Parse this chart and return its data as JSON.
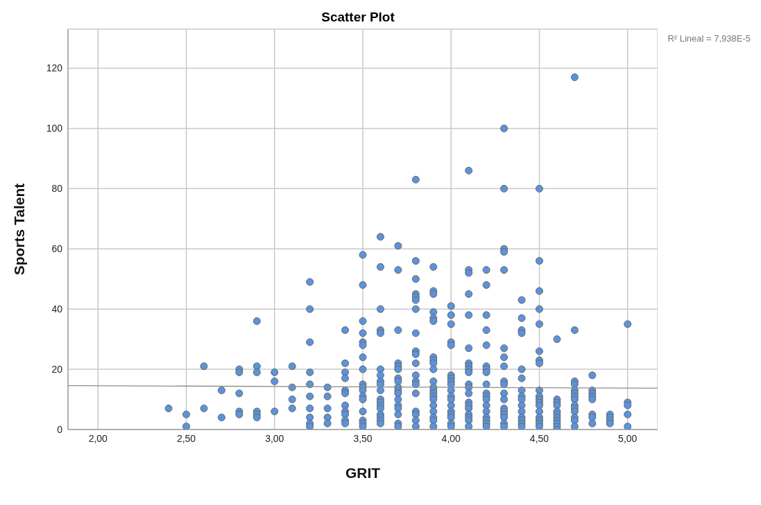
{
  "chart_data": {
    "type": "scatter",
    "title": "Scatter Plot",
    "xlabel": "GRIT",
    "ylabel": "Sports Talent",
    "annotations": [
      "R² Lineal = 7,938E-5"
    ],
    "xlim": [
      1.83,
      5.17
    ],
    "ylim": [
      0,
      133
    ],
    "xticks": [
      {
        "value": 2,
        "label": "2,00"
      },
      {
        "value": 2.5,
        "label": "2,50"
      },
      {
        "value": 3,
        "label": "3,00"
      },
      {
        "value": 3.5,
        "label": "3,50"
      },
      {
        "value": 4,
        "label": "4,00"
      },
      {
        "value": 4.5,
        "label": "4,50"
      },
      {
        "value": 5,
        "label": "5,00"
      }
    ],
    "yticks": [
      0,
      20,
      40,
      60,
      80,
      100,
      120
    ],
    "grid": true,
    "marker": "circle",
    "series": [
      {
        "color": "#5b93dc",
        "x": [
          2.4,
          2.5,
          2.5,
          2.6,
          2.6,
          2.7,
          2.7,
          2.8,
          2.8,
          2.8,
          2.8,
          2.8,
          2.9,
          2.9,
          2.9,
          2.9,
          2.9,
          2.9,
          3.0,
          3.0,
          3.0,
          3.1,
          3.1,
          3.1,
          3.1,
          3.2,
          3.2,
          3.2,
          3.2,
          3.2,
          3.2,
          3.2,
          3.2,
          3.2,
          3.2,
          3.3,
          3.3,
          3.3,
          3.3,
          3.3,
          3.4,
          3.4,
          3.4,
          3.4,
          3.4,
          3.4,
          3.4,
          3.4,
          3.4,
          3.4,
          3.4,
          3.5,
          3.5,
          3.5,
          3.5,
          3.5,
          3.5,
          3.5,
          3.5,
          3.5,
          3.5,
          3.5,
          3.5,
          3.5,
          3.5,
          3.5,
          3.5,
          3.5,
          3.6,
          3.6,
          3.6,
          3.6,
          3.6,
          3.6,
          3.6,
          3.6,
          3.6,
          3.6,
          3.6,
          3.6,
          3.6,
          3.6,
          3.6,
          3.6,
          3.6,
          3.6,
          3.7,
          3.7,
          3.7,
          3.7,
          3.7,
          3.7,
          3.7,
          3.7,
          3.7,
          3.7,
          3.7,
          3.7,
          3.7,
          3.7,
          3.7,
          3.7,
          3.7,
          3.8,
          3.8,
          3.8,
          3.8,
          3.8,
          3.8,
          3.8,
          3.8,
          3.8,
          3.8,
          3.8,
          3.8,
          3.8,
          3.8,
          3.8,
          3.8,
          3.8,
          3.8,
          3.8,
          3.9,
          3.9,
          3.9,
          3.9,
          3.9,
          3.9,
          3.9,
          3.9,
          3.9,
          3.9,
          3.9,
          3.9,
          3.9,
          3.9,
          3.9,
          3.9,
          3.9,
          3.9,
          3.9,
          3.9,
          3.9,
          4.0,
          4.0,
          4.0,
          4.0,
          4.0,
          4.0,
          4.0,
          4.0,
          4.0,
          4.0,
          4.0,
          4.0,
          4.0,
          4.0,
          4.0,
          4.0,
          4.0,
          4.0,
          4.1,
          4.1,
          4.1,
          4.1,
          4.1,
          4.1,
          4.1,
          4.1,
          4.1,
          4.1,
          4.1,
          4.1,
          4.1,
          4.1,
          4.1,
          4.1,
          4.1,
          4.1,
          4.1,
          4.1,
          4.2,
          4.2,
          4.2,
          4.2,
          4.2,
          4.2,
          4.2,
          4.2,
          4.2,
          4.2,
          4.2,
          4.2,
          4.2,
          4.2,
          4.2,
          4.2,
          4.2,
          4.2,
          4.3,
          4.3,
          4.3,
          4.3,
          4.3,
          4.3,
          4.3,
          4.3,
          4.3,
          4.3,
          4.3,
          4.3,
          4.3,
          4.3,
          4.3,
          4.3,
          4.3,
          4.3,
          4.4,
          4.4,
          4.4,
          4.4,
          4.4,
          4.4,
          4.4,
          4.4,
          4.4,
          4.4,
          4.4,
          4.4,
          4.4,
          4.4,
          4.4,
          4.5,
          4.5,
          4.5,
          4.5,
          4.5,
          4.5,
          4.5,
          4.5,
          4.5,
          4.5,
          4.5,
          4.5,
          4.5,
          4.5,
          4.5,
          4.5,
          4.5,
          4.5,
          4.6,
          4.6,
          4.6,
          4.6,
          4.6,
          4.6,
          4.6,
          4.6,
          4.6,
          4.6,
          4.6,
          4.7,
          4.7,
          4.7,
          4.7,
          4.7,
          4.7,
          4.7,
          4.7,
          4.7,
          4.7,
          4.7,
          4.7,
          4.7,
          4.7,
          4.8,
          4.8,
          4.8,
          4.8,
          4.8,
          4.8,
          4.8,
          4.8,
          4.9,
          4.9,
          4.9,
          4.9,
          5.0,
          5.0,
          5.0,
          5.0,
          5.0
        ],
        "values": [
          7,
          5,
          1,
          21,
          7,
          13,
          4,
          20,
          19,
          12,
          6,
          5,
          36,
          21,
          19,
          6,
          5,
          4,
          19,
          16,
          6,
          21,
          14,
          10,
          7,
          49,
          40,
          29,
          19,
          15,
          11,
          7,
          4,
          2,
          1,
          14,
          11,
          7,
          4,
          2,
          33,
          22,
          19,
          17,
          13,
          12,
          8,
          6,
          5,
          3,
          2,
          58,
          48,
          36,
          32,
          29,
          28,
          24,
          20,
          15,
          14,
          13,
          11,
          10,
          6,
          3,
          2,
          1,
          64,
          54,
          40,
          33,
          32,
          20,
          18,
          16,
          15,
          13,
          10,
          9,
          8,
          7,
          5,
          4,
          3,
          2,
          61,
          53,
          33,
          22,
          21,
          20,
          17,
          16,
          14,
          13,
          12,
          10,
          8,
          7,
          5,
          2,
          1,
          83,
          56,
          50,
          45,
          44,
          43,
          40,
          32,
          26,
          25,
          22,
          18,
          16,
          15,
          12,
          6,
          5,
          3,
          1,
          54,
          46,
          45,
          39,
          37,
          36,
          24,
          23,
          22,
          20,
          16,
          14,
          13,
          12,
          11,
          10,
          8,
          6,
          4,
          3,
          1,
          41,
          38,
          35,
          29,
          28,
          18,
          17,
          16,
          15,
          13,
          11,
          10,
          8,
          6,
          5,
          4,
          2,
          1,
          86,
          53,
          52,
          45,
          38,
          27,
          22,
          21,
          20,
          19,
          15,
          14,
          12,
          9,
          8,
          7,
          5,
          4,
          3,
          1,
          53,
          48,
          38,
          33,
          28,
          21,
          20,
          19,
          15,
          12,
          11,
          10,
          8,
          6,
          4,
          3,
          2,
          1,
          100,
          80,
          60,
          59,
          53,
          27,
          24,
          21,
          16,
          15,
          12,
          10,
          7,
          6,
          5,
          4,
          2,
          1,
          43,
          37,
          33,
          32,
          20,
          17,
          13,
          11,
          10,
          8,
          6,
          4,
          3,
          2,
          1,
          80,
          56,
          46,
          40,
          35,
          26,
          23,
          22,
          13,
          11,
          10,
          9,
          8,
          6,
          4,
          3,
          2,
          1,
          30,
          10,
          9,
          8,
          6,
          5,
          4,
          3,
          2,
          1,
          0,
          117,
          33,
          16,
          15,
          13,
          12,
          11,
          10,
          8,
          7,
          6,
          4,
          3,
          1,
          18,
          13,
          12,
          11,
          10,
          5,
          4,
          2,
          5,
          4,
          3,
          2,
          35,
          9,
          8,
          5,
          1
        ]
      },
      {
        "type": "line",
        "color": "#8c8c8c",
        "marker": "none",
        "line_style": "solid",
        "x": [
          1.83,
          5.17
        ],
        "values": [
          14.6,
          13.7
        ]
      }
    ]
  }
}
